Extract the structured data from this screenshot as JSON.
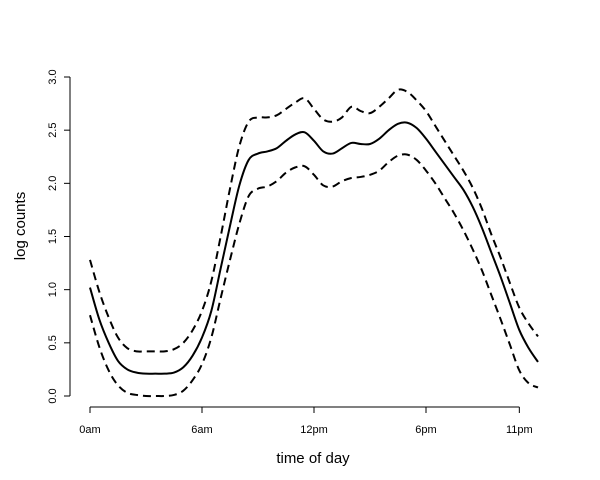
{
  "chart_data": {
    "type": "line",
    "title": "",
    "xlabel": "time of day",
    "ylabel": "log counts",
    "xlim": [
      0,
      24
    ],
    "ylim": [
      0,
      3.0
    ],
    "x_ticks": [
      {
        "value": 0,
        "label": "0am"
      },
      {
        "value": 6,
        "label": "6am"
      },
      {
        "value": 12,
        "label": "12pm"
      },
      {
        "value": 18,
        "label": "6pm"
      },
      {
        "value": 23,
        "label": "11pm"
      }
    ],
    "y_ticks": [
      {
        "value": 0.0,
        "label": "0.0"
      },
      {
        "value": 0.5,
        "label": "0.5"
      },
      {
        "value": 1.0,
        "label": "1.0"
      },
      {
        "value": 1.5,
        "label": "1.5"
      },
      {
        "value": 2.0,
        "label": "2.0"
      },
      {
        "value": 2.5,
        "label": "2.5"
      },
      {
        "value": 3.0,
        "label": "3.0"
      }
    ],
    "x": [
      0,
      0.5,
      1,
      1.5,
      2,
      2.5,
      3,
      3.5,
      4,
      4.5,
      5,
      5.5,
      6,
      6.5,
      7,
      7.5,
      8,
      8.5,
      9,
      9.5,
      10,
      10.5,
      11,
      11.5,
      12,
      12.5,
      13,
      13.5,
      14,
      14.5,
      15,
      15.5,
      16,
      16.5,
      17,
      17.5,
      18,
      18.5,
      19,
      19.5,
      20,
      20.5,
      21,
      21.5,
      22,
      22.5,
      23,
      23.5,
      24
    ],
    "series": [
      {
        "name": "fit",
        "style": "solid",
        "values": [
          1.02,
          0.72,
          0.5,
          0.33,
          0.25,
          0.22,
          0.21,
          0.21,
          0.21,
          0.22,
          0.27,
          0.38,
          0.55,
          0.8,
          1.2,
          1.6,
          1.98,
          2.22,
          2.28,
          2.3,
          2.33,
          2.4,
          2.46,
          2.48,
          2.4,
          2.3,
          2.28,
          2.33,
          2.38,
          2.37,
          2.37,
          2.42,
          2.5,
          2.56,
          2.57,
          2.52,
          2.42,
          2.3,
          2.18,
          2.06,
          1.94,
          1.78,
          1.58,
          1.35,
          1.12,
          0.87,
          0.62,
          0.45,
          0.32
        ]
      },
      {
        "name": "upper",
        "style": "dashed",
        "values": [
          1.28,
          0.98,
          0.74,
          0.55,
          0.45,
          0.42,
          0.42,
          0.42,
          0.42,
          0.44,
          0.5,
          0.62,
          0.8,
          1.08,
          1.5,
          1.95,
          2.35,
          2.58,
          2.62,
          2.62,
          2.64,
          2.7,
          2.76,
          2.8,
          2.7,
          2.6,
          2.58,
          2.62,
          2.72,
          2.68,
          2.66,
          2.72,
          2.8,
          2.88,
          2.86,
          2.78,
          2.68,
          2.54,
          2.4,
          2.26,
          2.12,
          1.96,
          1.76,
          1.52,
          1.3,
          1.06,
          0.83,
          0.68,
          0.56
        ]
      },
      {
        "name": "lower",
        "style": "dashed",
        "values": [
          0.76,
          0.46,
          0.24,
          0.1,
          0.03,
          0.01,
          0.0,
          0.0,
          0.0,
          0.01,
          0.05,
          0.15,
          0.3,
          0.55,
          0.92,
          1.28,
          1.62,
          1.88,
          1.95,
          1.97,
          2.02,
          2.1,
          2.15,
          2.16,
          2.08,
          1.98,
          1.97,
          2.02,
          2.05,
          2.06,
          2.08,
          2.12,
          2.2,
          2.26,
          2.27,
          2.22,
          2.12,
          2.0,
          1.86,
          1.72,
          1.56,
          1.38,
          1.18,
          0.95,
          0.72,
          0.48,
          0.24,
          0.12,
          0.08
        ]
      }
    ]
  }
}
